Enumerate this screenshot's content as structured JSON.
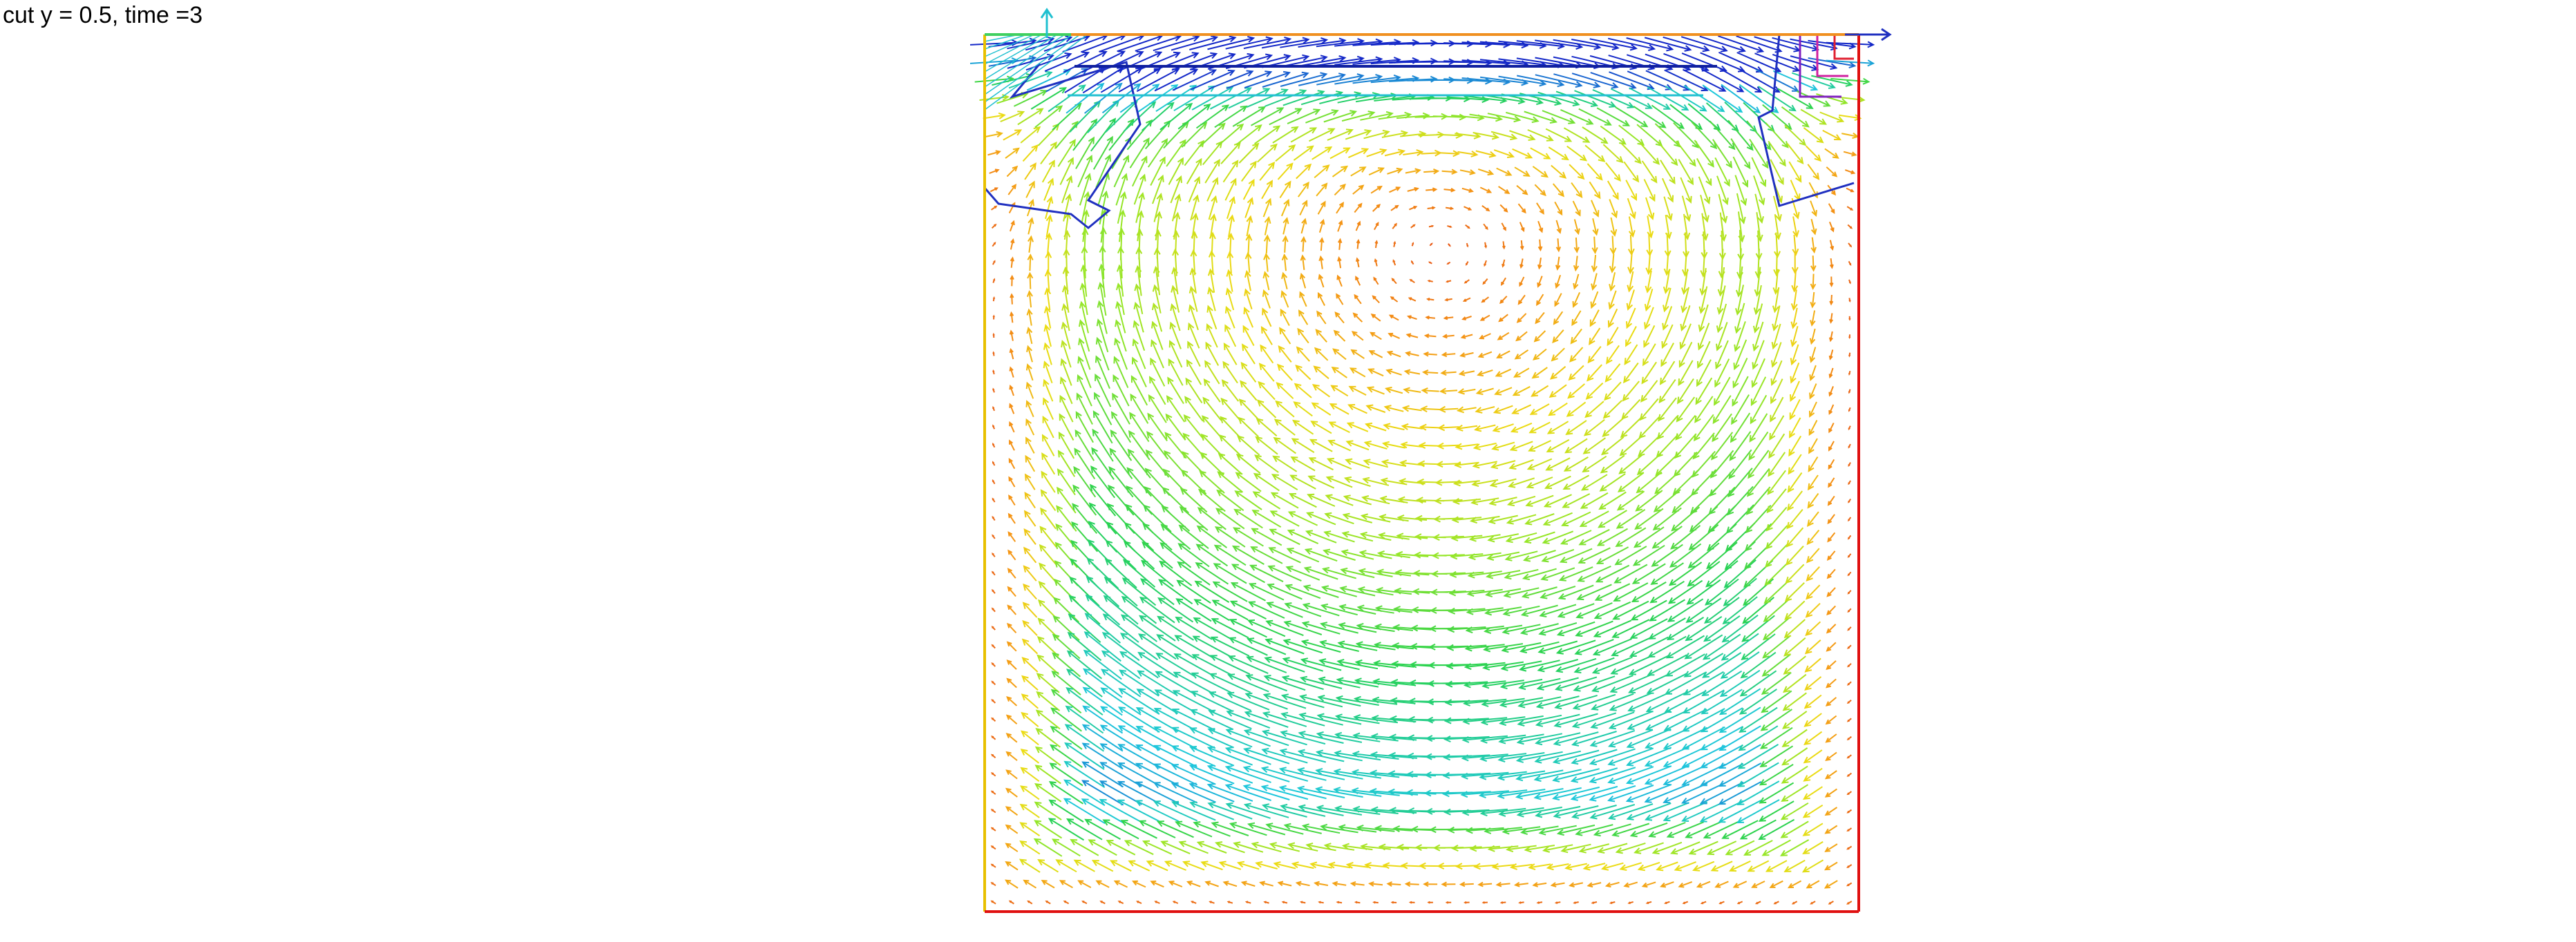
{
  "title": "cut y = 0.5, time =3",
  "colors": {
    "frame_left": "#e8c000",
    "frame_right": "#e01010",
    "frame_top": "#f09020",
    "frame_bottom": "#e01010",
    "frame_top_corner_left": "#40d060",
    "contour_blue": "#2030c0",
    "contour_cyan": "#20c0d0",
    "contour_navy": "#1020a0",
    "contour_purple": "#8020c0",
    "contour_magenta": "#d020a0",
    "contour_red": "#e02030"
  },
  "chart_data": {
    "type": "vector_field",
    "title": "cut y = 0.5, time =3",
    "xlabel": "",
    "ylabel": "",
    "xlim": [
      0,
      1
    ],
    "ylim": [
      0,
      1
    ],
    "grid": false,
    "legend": "none",
    "colormap": "rainbow (orange/red = low magnitude, yellow-green mid, cyan/blue = high)",
    "flow": "single clockwise lid-driven cavity vortex; lid at top moving in +x",
    "vortex_center": [
      0.52,
      0.78
    ],
    "lid_velocity": 1.0,
    "field_grid": {
      "nx": 48,
      "ny": 48
    }
  }
}
